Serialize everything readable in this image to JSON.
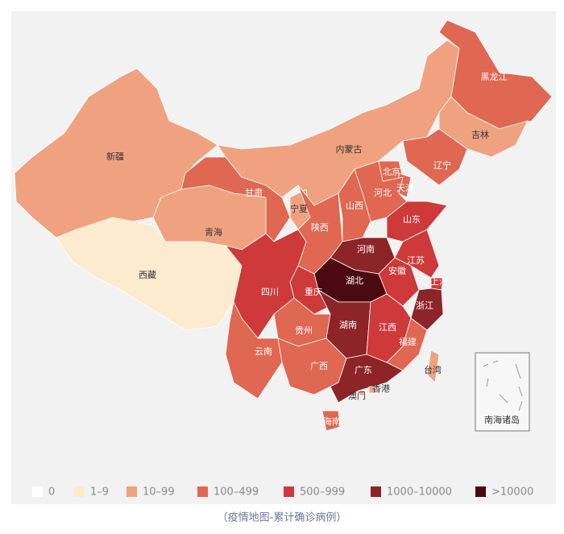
{
  "map": {
    "legend": [
      {
        "label": "0",
        "color": "#ffffff"
      },
      {
        "label": "1–9",
        "color": "#fdebcf"
      },
      {
        "label": "10–99",
        "color": "#f0a280"
      },
      {
        "label": "100–499",
        "color": "#e06751"
      },
      {
        "label": "500–999",
        "color": "#cd3a39"
      },
      {
        "label": "1000–10000",
        "color": "#8c2428"
      },
      {
        "label": ">10000",
        "color": "#4b0a10"
      }
    ],
    "regions": [
      {
        "name": "新疆",
        "level": 2
      },
      {
        "name": "西藏",
        "level": 1
      },
      {
        "name": "青海",
        "level": 2
      },
      {
        "name": "甘肃",
        "level": 3
      },
      {
        "name": "内蒙古",
        "level": 2
      },
      {
        "name": "黑龙江",
        "level": 3
      },
      {
        "name": "吉林",
        "level": 2
      },
      {
        "name": "辽宁",
        "level": 3
      },
      {
        "name": "北京",
        "level": 3
      },
      {
        "name": "天津",
        "level": 3
      },
      {
        "name": "河北",
        "level": 3
      },
      {
        "name": "山西",
        "level": 3
      },
      {
        "name": "宁夏",
        "level": 2
      },
      {
        "name": "陕西",
        "level": 3
      },
      {
        "name": "山东",
        "level": 4
      },
      {
        "name": "河南",
        "level": 5
      },
      {
        "name": "江苏",
        "level": 4
      },
      {
        "name": "安徽",
        "level": 4
      },
      {
        "name": "上海",
        "level": 4
      },
      {
        "name": "浙江",
        "level": 5
      },
      {
        "name": "湖北",
        "level": 6
      },
      {
        "name": "重庆",
        "level": 4
      },
      {
        "name": "四川",
        "level": 4
      },
      {
        "name": "贵州",
        "level": 3
      },
      {
        "name": "湖南",
        "level": 5
      },
      {
        "name": "江西",
        "level": 4
      },
      {
        "name": "福建",
        "level": 3
      },
      {
        "name": "云南",
        "level": 3
      },
      {
        "name": "广西",
        "level": 3
      },
      {
        "name": "广东",
        "level": 5
      },
      {
        "name": "海南",
        "level": 3
      },
      {
        "name": "台湾",
        "level": 2
      },
      {
        "name": "香港",
        "level": 2
      },
      {
        "name": "澳门",
        "level": 2
      }
    ],
    "inset_label": "南海诸岛",
    "caption": "（疫情地图-累计确诊病例）"
  }
}
